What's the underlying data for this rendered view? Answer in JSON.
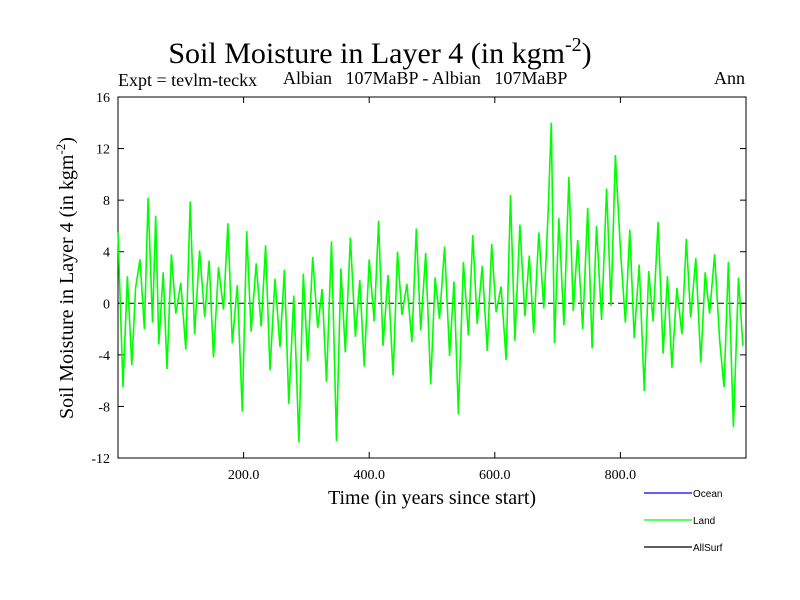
{
  "header": {
    "title": "Soil Moisture in Layer 4 (in kgm",
    "title_sup": "-2",
    "title_close": ")",
    "expt": "Expt = tevlm-teckx",
    "period": "Albian   107MaBP - Albian   107MaBP",
    "season": "Ann"
  },
  "chart_data": {
    "type": "line",
    "title": "Soil Moisture in Layer 4 (in kgm-2)",
    "xlabel": "Time (in years since start)",
    "ylabel": "Soil Moisture in Layer 4 (in kgm-2)",
    "ylabel_main": "Soil Moisture in Layer 4 (in kgm",
    "ylabel_sup": "-2",
    "ylabel_close": ")",
    "xlim": [
      0,
      1000
    ],
    "ylim": [
      -12,
      16
    ],
    "x_ticks": [
      200,
      400,
      600,
      800
    ],
    "x_tick_labels": [
      "200.0",
      "400.0",
      "600.0",
      "800.0"
    ],
    "y_ticks": [
      -12,
      -8,
      -4,
      0,
      4,
      8,
      12,
      16
    ],
    "y_tick_labels": [
      "-12",
      "-8",
      "-4",
      "0",
      "4",
      "8",
      "12",
      "16"
    ],
    "zero_line": 0,
    "series": [
      {
        "name": "Ocean",
        "color": "#0000ff",
        "x": [],
        "values": []
      },
      {
        "name": "Land",
        "color": "#00ff00",
        "x": [
          0,
          8,
          15,
          22,
          28,
          35,
          42,
          48,
          55,
          60,
          65,
          72,
          78,
          85,
          92,
          100,
          108,
          115,
          122,
          130,
          138,
          145,
          152,
          160,
          168,
          175,
          182,
          190,
          198,
          205,
          212,
          220,
          228,
          235,
          242,
          250,
          258,
          265,
          272,
          280,
          288,
          295,
          302,
          310,
          318,
          325,
          332,
          340,
          348,
          355,
          362,
          370,
          378,
          385,
          392,
          400,
          408,
          415,
          422,
          430,
          438,
          445,
          452,
          460,
          468,
          475,
          482,
          490,
          498,
          505,
          512,
          520,
          528,
          535,
          542,
          550,
          558,
          565,
          572,
          580,
          588,
          595,
          602,
          610,
          618,
          625,
          632,
          640,
          648,
          655,
          662,
          670,
          678,
          685,
          690,
          695,
          702,
          710,
          718,
          725,
          732,
          740,
          748,
          755,
          762,
          770,
          778,
          785,
          792,
          800,
          808,
          815,
          822,
          830,
          838,
          845,
          852,
          860,
          868,
          875,
          882,
          890,
          898,
          905,
          912,
          920,
          928,
          935,
          942,
          950,
          958,
          965,
          972,
          980,
          988,
          995
        ],
        "values": [
          5.5,
          -6.5,
          2.1,
          -4.8,
          1.2,
          3.4,
          -2.0,
          8.2,
          -1.5,
          6.8,
          -3.2,
          2.4,
          -5.1,
          3.8,
          -0.8,
          1.6,
          -3.6,
          7.9,
          -2.4,
          4.1,
          -1.1,
          3.3,
          -4.2,
          2.8,
          -0.5,
          6.2,
          -3.1,
          1.4,
          -8.4,
          5.6,
          -2.2,
          3.1,
          -1.8,
          4.5,
          -5.2,
          1.9,
          -3.4,
          2.6,
          -7.8,
          0.6,
          -10.8,
          2.3,
          -4.5,
          3.6,
          -1.9,
          1.1,
          -6.1,
          4.8,
          -10.7,
          2.7,
          -3.8,
          5.1,
          -2.6,
          1.8,
          -4.9,
          3.4,
          -1.4,
          6.4,
          -3.3,
          2.2,
          -5.6,
          4.0,
          -0.9,
          1.5,
          -3.0,
          5.8,
          -2.1,
          3.9,
          -6.3,
          2.0,
          -1.2,
          4.4,
          -4.1,
          1.7,
          -8.6,
          3.2,
          -2.5,
          5.3,
          -1.6,
          2.9,
          -3.7,
          4.6,
          -0.7,
          1.3,
          -4.4,
          8.4,
          -2.9,
          6.1,
          -1.0,
          3.7,
          -2.3,
          5.5,
          -0.4,
          7.2,
          14.0,
          -3.1,
          6.6,
          -1.7,
          9.8,
          -0.6,
          4.9,
          -2.0,
          7.4,
          -3.5,
          6.0,
          -1.3,
          8.9,
          -0.2,
          11.5,
          4.2,
          -1.5,
          5.7,
          -2.7,
          3.0,
          -6.8,
          2.5,
          -1.4,
          6.3,
          -3.9,
          2.1,
          -5.0,
          1.2,
          -2.4,
          5.0,
          -1.1,
          3.5,
          -4.6,
          2.4,
          -0.8,
          3.8,
          -2.8,
          -6.5,
          3.2,
          -9.6,
          2.0,
          -3.3
        ]
      },
      {
        "name": "AllSurf",
        "color": "#000000",
        "x": [],
        "values": []
      }
    ],
    "legend": [
      "Ocean",
      "Land",
      "AllSurf"
    ],
    "legend_position": "bottom-right"
  }
}
